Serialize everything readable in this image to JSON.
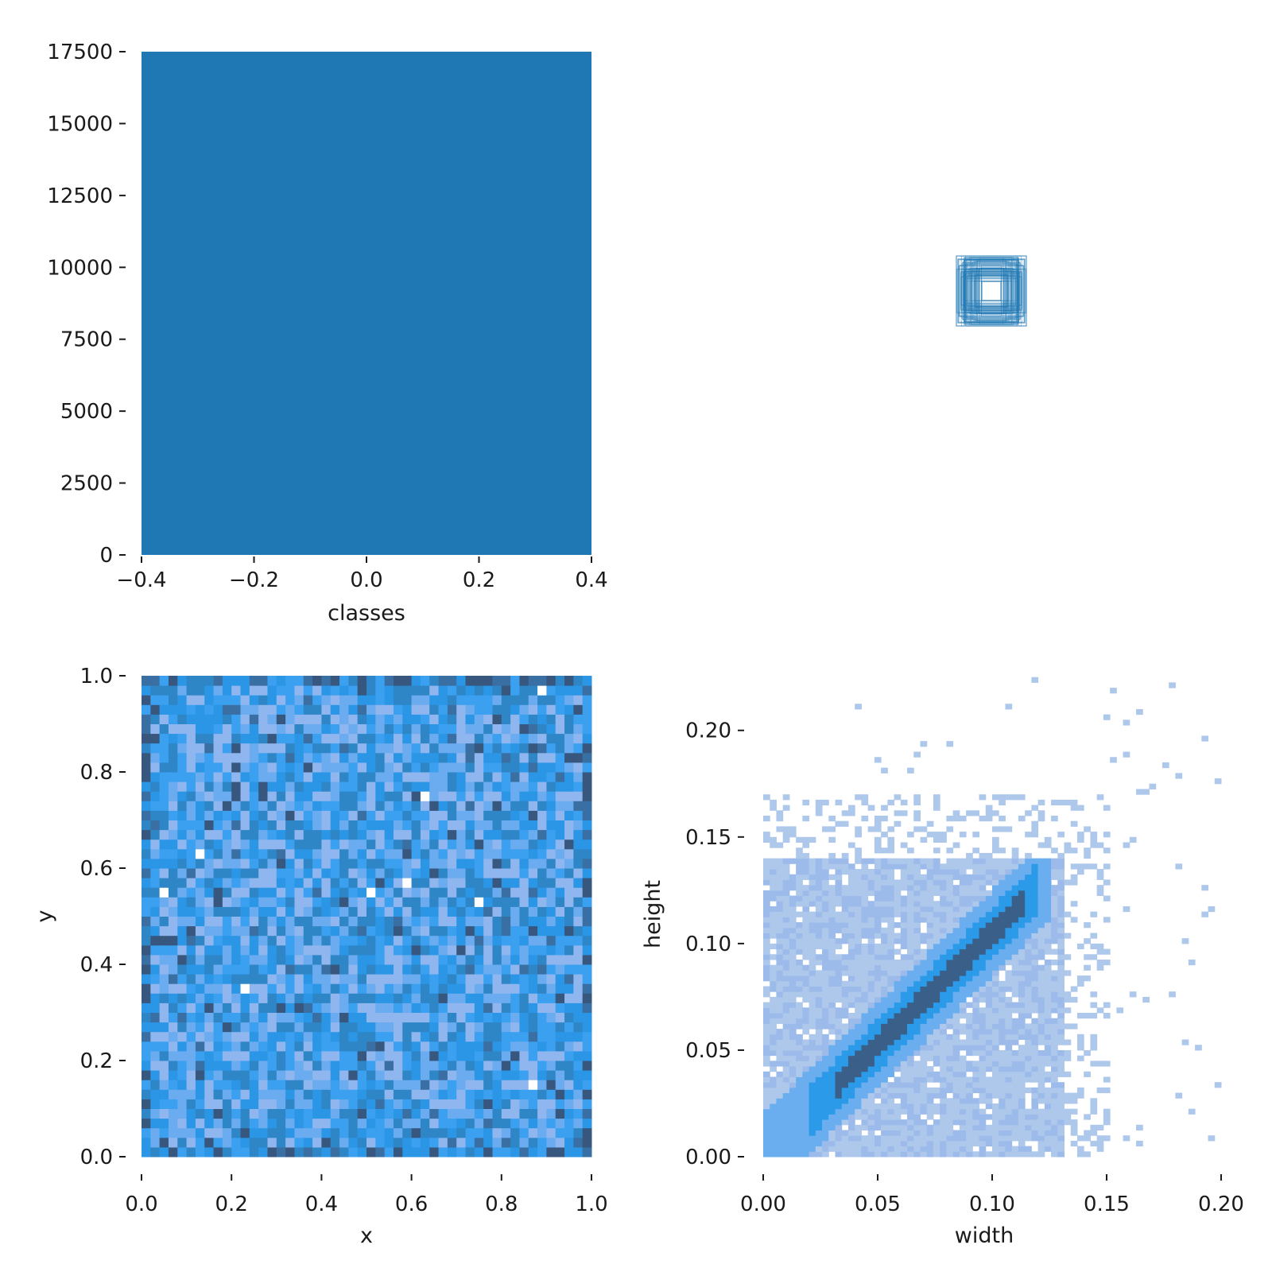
{
  "chart_data": [
    {
      "panel": "top-left",
      "type": "bar",
      "xlabel": "classes",
      "ylabel": "",
      "x_ticks": [
        -0.4,
        -0.2,
        0.0,
        0.2,
        0.4
      ],
      "x_tick_labels": [
        "−0.4",
        "−0.2",
        "0.0",
        "0.2",
        "0.4"
      ],
      "y_ticks": [
        0,
        2500,
        5000,
        7500,
        10000,
        12500,
        15000,
        17500
      ],
      "y_tick_labels": [
        "0",
        "2500",
        "5000",
        "7500",
        "10000",
        "12500",
        "15000",
        "17500"
      ],
      "xlim": [
        -0.4,
        0.4
      ],
      "ylim": [
        0,
        17500
      ],
      "bars": [
        {
          "x_start": -0.4,
          "x_end": 0.4,
          "value": 17500
        }
      ],
      "color": "#1f77b4"
    },
    {
      "panel": "top-right",
      "type": "scatter",
      "note_type": "bounding-box-overlay",
      "color": "#1f77b4",
      "boxes": [
        [
          0.5,
          0.5,
          0.11,
          0.11
        ],
        [
          0.5,
          0.5,
          0.09,
          0.09
        ],
        [
          0.5,
          0.5,
          0.07,
          0.07
        ],
        [
          0.5,
          0.5,
          0.05,
          0.05
        ],
        [
          0.5,
          0.5,
          0.03,
          0.03
        ],
        [
          0.5,
          0.5,
          0.1,
          0.08
        ],
        [
          0.5,
          0.5,
          0.08,
          0.1
        ],
        [
          0.5,
          0.5,
          0.06,
          0.09
        ],
        [
          0.5,
          0.5,
          0.095,
          0.06
        ],
        [
          0.5,
          0.5,
          0.04,
          0.07
        ],
        [
          0.5,
          0.5,
          0.105,
          0.1
        ],
        [
          0.5,
          0.5,
          0.085,
          0.105
        ]
      ]
    },
    {
      "panel": "bottom-left",
      "type": "heatmap",
      "xlabel": "x",
      "ylabel": "y",
      "xlim": [
        0.0,
        1.0
      ],
      "ylim": [
        0.0,
        1.0
      ],
      "bins": 50,
      "x_ticks": [
        0.0,
        0.2,
        0.4,
        0.6,
        0.8,
        1.0
      ],
      "x_tick_labels": [
        "0.0",
        "0.2",
        "0.4",
        "0.6",
        "0.8",
        "1.0"
      ],
      "y_ticks": [
        0.0,
        0.2,
        0.4,
        0.6,
        0.8,
        1.0
      ],
      "y_tick_labels": [
        "0.0",
        "0.2",
        "0.4",
        "0.6",
        "0.8",
        "1.0"
      ],
      "colors": [
        "#8fb6ef",
        "#6aacef",
        "#3aa0ef",
        "#2b95e6",
        "#2f86c6",
        "#3a6fa3",
        "#37577f"
      ]
    },
    {
      "panel": "bottom-right",
      "type": "heatmap",
      "xlabel": "width",
      "ylabel": "height",
      "xlim": [
        0.0,
        0.2
      ],
      "ylim": [
        0.0,
        0.2275
      ],
      "bins": 50,
      "x_ticks": [
        0.0,
        0.05,
        0.1,
        0.15,
        0.2
      ],
      "x_tick_labels": [
        "0.00",
        "0.05",
        "0.10",
        "0.15",
        "0.20"
      ],
      "y_ticks": [
        0.0,
        0.05,
        0.1,
        0.15,
        0.2
      ],
      "y_tick_labels": [
        "0.00",
        "0.05",
        "0.10",
        "0.15",
        "0.20"
      ],
      "colors": [
        "#aec8ec",
        "#9dbbea",
        "#6aaeef",
        "#2b9ae8",
        "#2f80c0",
        "#3a5f88"
      ]
    }
  ]
}
